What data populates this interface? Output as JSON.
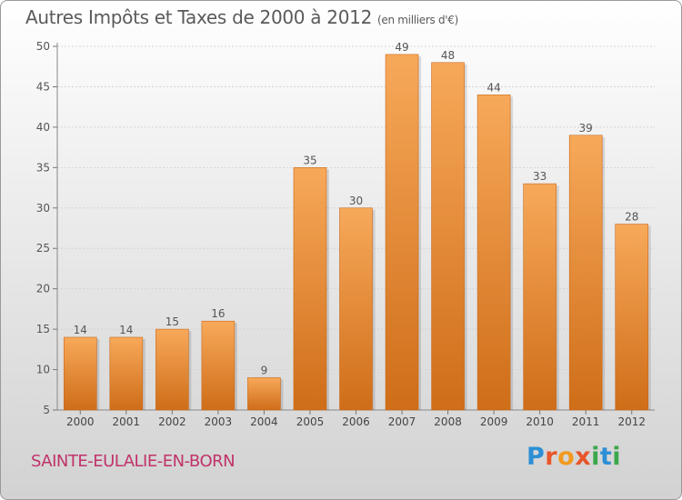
{
  "header": {
    "title": "Autres Impôts et Taxes de 2000 à 2012",
    "unit": "(en milliers d'€)"
  },
  "footer": {
    "commune": "SAINTE-EULALIE-EN-BORN",
    "logo": [
      "P",
      "r",
      "o",
      "x",
      "i",
      "t",
      "i"
    ],
    "logo_colors": [
      "#2d8fd5",
      "#e8562a",
      "#f29a1e",
      "#e8562a",
      "#3aa84a",
      "#2d8fd5",
      "#3aa84a"
    ]
  },
  "colors": {
    "bar_top": "#f7a95a",
    "bar_bottom": "#cf6d18",
    "commune": "#c0336a"
  },
  "chart_data": {
    "type": "bar",
    "categories": [
      "2000",
      "2001",
      "2002",
      "2003",
      "2004",
      "2005",
      "2006",
      "2007",
      "2008",
      "2009",
      "2010",
      "2011",
      "2012"
    ],
    "values": [
      14,
      14,
      15,
      16,
      9,
      35,
      30,
      49,
      48,
      44,
      33,
      39,
      28
    ],
    "ylim": [
      5,
      50
    ],
    "yticks": [
      5,
      10,
      15,
      20,
      25,
      30,
      35,
      40,
      45,
      50
    ],
    "grid": true
  }
}
